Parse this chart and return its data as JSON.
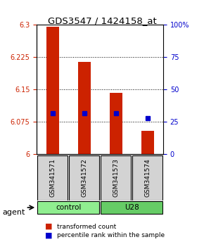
{
  "title": "GDS3547 / 1424158_at",
  "samples": [
    "GSM341571",
    "GSM341572",
    "GSM341573",
    "GSM341574"
  ],
  "groups": [
    "control",
    "control",
    "U28",
    "U28"
  ],
  "group_labels": [
    "control",
    "U28"
  ],
  "group_colors": [
    "#90EE90",
    "#66CC66"
  ],
  "bar_values": [
    6.295,
    6.215,
    6.143,
    6.055
  ],
  "bar_base": 6.0,
  "percentile_values": [
    0.32,
    0.32,
    0.32,
    0.28
  ],
  "ylim_left": [
    6.0,
    6.3
  ],
  "ylim_right": [
    0,
    100
  ],
  "yticks_left": [
    6.0,
    6.075,
    6.15,
    6.225,
    6.3
  ],
  "ytick_labels_left": [
    "6",
    "6.075",
    "6.15",
    "6.225",
    "6.3"
  ],
  "yticks_right": [
    0,
    25,
    50,
    75,
    100
  ],
  "ytick_labels_right": [
    "0",
    "25",
    "50",
    "75",
    "100%"
  ],
  "bar_color": "#CC2200",
  "percentile_color": "#0000CC",
  "sample_bg_color": "#D3D3D3",
  "group_bar_height": 0.045,
  "agent_label": "agent",
  "bar_width": 0.4
}
